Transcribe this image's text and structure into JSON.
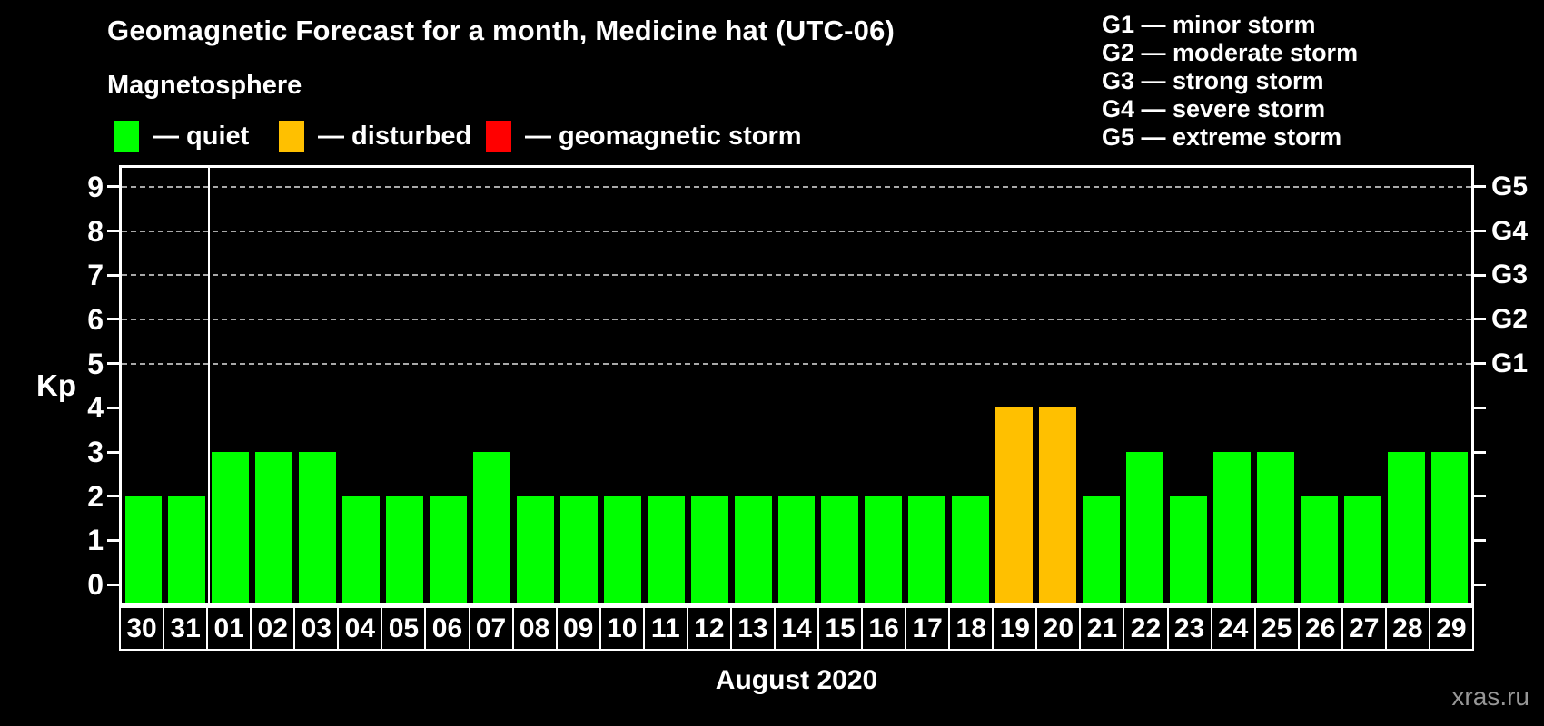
{
  "header": {
    "title": "Geomagnetic Forecast for a month, Medicine hat (UTC-06)",
    "subtitle": "Magnetosphere",
    "watermark": "xras.ru"
  },
  "legend": {
    "items": [
      {
        "status": "quiet",
        "label": "— quiet",
        "color": "#00ff00"
      },
      {
        "status": "disturbed",
        "label": "— disturbed",
        "color": "#ffc000"
      },
      {
        "status": "storm",
        "label": "— geomagnetic storm",
        "color": "#ff0000"
      }
    ]
  },
  "g_legend": {
    "lines": [
      "G1 — minor storm",
      "G2 — moderate storm",
      "G3 — strong storm",
      "G4 — severe storm",
      "G5 — extreme storm"
    ]
  },
  "chart_data": {
    "type": "bar",
    "title": "Geomagnetic Forecast for a month, Medicine hat (UTC-06)",
    "xlabel": "August 2020",
    "ylabel": "Kp",
    "ylim": [
      -0.43,
      9.43
    ],
    "yticks": [
      0,
      1,
      2,
      3,
      4,
      5,
      6,
      7,
      8,
      9
    ],
    "grid_levels": [
      5,
      6,
      7,
      8,
      9
    ],
    "grid_on": true,
    "right_axis_labels": [
      {
        "kp": 5,
        "label": "G1"
      },
      {
        "kp": 6,
        "label": "G2"
      },
      {
        "kp": 7,
        "label": "G3"
      },
      {
        "kp": 8,
        "label": "G4"
      },
      {
        "kp": 9,
        "label": "G5"
      }
    ],
    "categories": [
      "30",
      "31",
      "01",
      "02",
      "03",
      "04",
      "05",
      "06",
      "07",
      "08",
      "09",
      "10",
      "11",
      "12",
      "13",
      "14",
      "15",
      "16",
      "17",
      "18",
      "19",
      "20",
      "21",
      "22",
      "23",
      "24",
      "25",
      "26",
      "27",
      "28",
      "29"
    ],
    "values": [
      2,
      2,
      3,
      3,
      3,
      2,
      2,
      2,
      3,
      2,
      2,
      2,
      2,
      2,
      2,
      2,
      2,
      2,
      2,
      2,
      4,
      4,
      2,
      3,
      2,
      3,
      3,
      2,
      2,
      3,
      3
    ],
    "statuses": [
      "quiet",
      "quiet",
      "quiet",
      "quiet",
      "quiet",
      "quiet",
      "quiet",
      "quiet",
      "quiet",
      "quiet",
      "quiet",
      "quiet",
      "quiet",
      "quiet",
      "quiet",
      "quiet",
      "quiet",
      "quiet",
      "quiet",
      "quiet",
      "disturbed",
      "disturbed",
      "quiet",
      "quiet",
      "quiet",
      "quiet",
      "quiet",
      "quiet",
      "quiet",
      "quiet",
      "quiet"
    ],
    "status_colors": {
      "quiet": "#00ff00",
      "disturbed": "#ffc000",
      "storm": "#ff0000"
    },
    "month_separator_after_index": 1,
    "legend_position": "top-left",
    "background_color": "#000000",
    "axis_color": "#ffffff",
    "gridline_color": "#a8a8a8"
  }
}
